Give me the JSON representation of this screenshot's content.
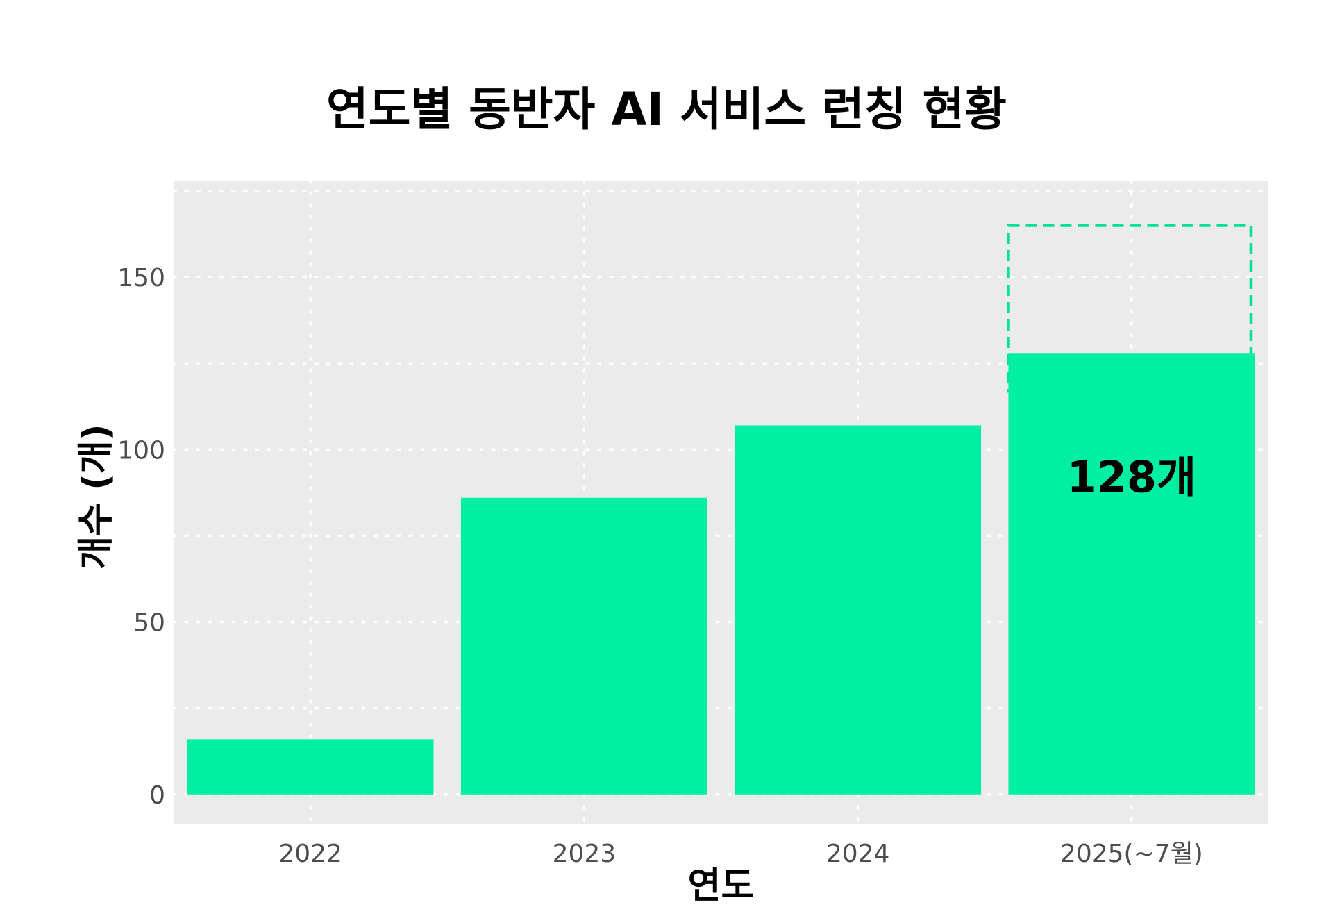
{
  "chart_data": {
    "type": "bar",
    "title": "연도별 동반자 AI 서비스 런칭 현황",
    "xlabel": "연도",
    "ylabel": "개수 (개)",
    "categories": [
      "2022",
      "2023",
      "2024",
      "2025(~7월)"
    ],
    "values": [
      16,
      86,
      107,
      128
    ],
    "projected": {
      "category": "2025(~7월)",
      "value": 165
    },
    "ylim": [
      -8.5,
      178
    ],
    "yticks": [
      0,
      50,
      100,
      150
    ],
    "data_labels": [
      {
        "category": "2025(~7월)",
        "text": "128개"
      }
    ],
    "grid": true,
    "legend": "none",
    "colors": {
      "bar": "#00EFA3",
      "projected_outline": "#00E09A",
      "panel_background": "#EBEBEB",
      "grid": "#FFFFFF",
      "tick_text": "#4D4D4D",
      "title_text": "#000000"
    }
  }
}
